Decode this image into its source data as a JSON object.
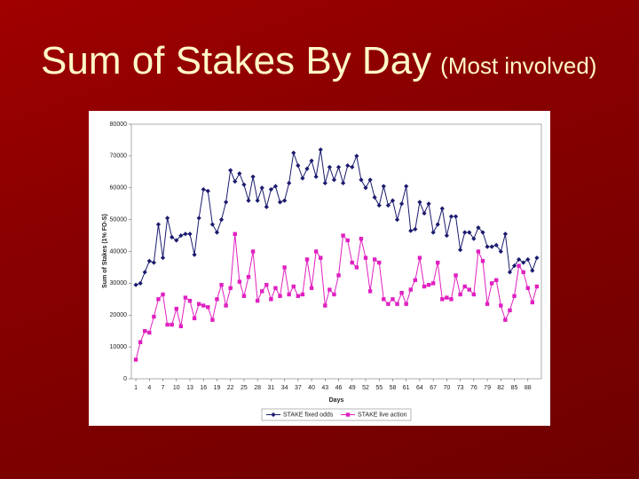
{
  "chart_data": {
    "type": "line",
    "title": "Sum of Stakes By Day",
    "subtitle": "(Most involved)",
    "x_label": "Days",
    "y_label": "Sum of Stakes (1% FO-S)",
    "x": [
      1,
      2,
      3,
      4,
      5,
      6,
      7,
      8,
      9,
      10,
      11,
      12,
      13,
      14,
      15,
      16,
      17,
      18,
      19,
      20,
      21,
      22,
      23,
      24,
      25,
      26,
      27,
      28,
      29,
      30,
      31,
      32,
      33,
      34,
      35,
      36,
      37,
      38,
      39,
      40,
      41,
      42,
      43,
      44,
      45,
      46,
      47,
      48,
      49,
      50,
      51,
      52,
      53,
      54,
      55,
      56,
      57,
      58,
      59,
      60,
      61,
      62,
      63,
      64,
      65,
      66,
      67,
      68,
      69,
      70,
      71,
      72,
      73,
      74,
      75,
      76,
      77,
      78,
      79,
      80,
      81,
      82,
      83,
      84,
      85,
      86,
      87,
      88,
      89,
      90
    ],
    "series": [
      {
        "name": "STAKE fixed odds",
        "color": "#1a1a6e",
        "marker": "diamond",
        "values": [
          29500,
          30000,
          33500,
          37000,
          36500,
          48500,
          38000,
          50500,
          44500,
          43500,
          45000,
          45500,
          45500,
          39000,
          50500,
          59500,
          59000,
          48500,
          46000,
          50000,
          55500,
          65500,
          62000,
          64500,
          61000,
          56000,
          63500,
          56000,
          60000,
          54000,
          59500,
          60500,
          55500,
          56000,
          61500,
          71000,
          67000,
          63000,
          66000,
          68500,
          63500,
          72000,
          61500,
          66500,
          62500,
          66500,
          61500,
          67000,
          66500,
          70000,
          62500,
          60000,
          62500,
          57000,
          54500,
          60500,
          54500,
          56000,
          50000,
          55000,
          60500,
          46500,
          47000,
          55500,
          52000,
          55000,
          46000,
          48500,
          53500,
          45000,
          51000,
          51000,
          40500,
          46000,
          46000,
          44000,
          47500,
          46000,
          41500,
          41500,
          42000,
          40000,
          45500,
          33500,
          35500,
          37500,
          36500,
          37500,
          34000,
          38000
        ]
      },
      {
        "name": "STAKE live action",
        "color": "#e020c0",
        "marker": "square",
        "values": [
          6000,
          11500,
          15000,
          14500,
          19500,
          25000,
          26500,
          17000,
          17000,
          22000,
          16500,
          25500,
          24500,
          19000,
          23500,
          23000,
          22500,
          18500,
          25000,
          29500,
          23000,
          28500,
          45500,
          30500,
          26000,
          32000,
          40000,
          24500,
          27500,
          29500,
          25000,
          28500,
          26000,
          35000,
          26500,
          29000,
          26000,
          26500,
          37500,
          28500,
          40000,
          38000,
          23000,
          28000,
          26500,
          32500,
          45000,
          43500,
          36500,
          35000,
          44000,
          38000,
          27500,
          37500,
          36500,
          25000,
          23500,
          25000,
          23500,
          27000,
          23500,
          28000,
          31000,
          38000,
          29000,
          29500,
          30000,
          36500,
          25000,
          25500,
          25000,
          32500,
          26500,
          29000,
          28000,
          26500,
          40000,
          37000,
          23500,
          30000,
          31000,
          23000,
          18500,
          21500,
          26000,
          35500,
          33500,
          28500,
          24000,
          29000
        ]
      }
    ],
    "xlim": [
      0,
      91
    ],
    "xticks": [
      1,
      4,
      7,
      10,
      13,
      16,
      19,
      22,
      25,
      28,
      31,
      34,
      37,
      40,
      43,
      46,
      49,
      52,
      55,
      58,
      61,
      64,
      67,
      70,
      73,
      76,
      79,
      82,
      85,
      88
    ],
    "ylim": [
      0,
      80000
    ],
    "yticks": [
      0,
      10000,
      20000,
      30000,
      40000,
      50000,
      60000,
      70000,
      80000
    ],
    "grid": false,
    "legend": "bottom"
  }
}
